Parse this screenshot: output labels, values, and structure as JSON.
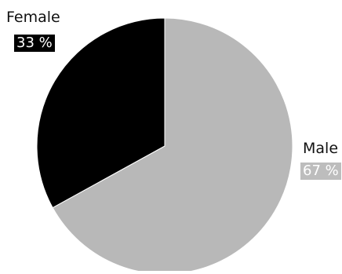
{
  "chart_data": {
    "type": "pie",
    "slices": [
      {
        "label": "Male",
        "value": 67,
        "value_label": "67 %",
        "color": "#b8b8b8"
      },
      {
        "label": "Female",
        "value": 33,
        "value_label": "33 %",
        "color": "#000000"
      }
    ],
    "start": "top, clockwise",
    "legend": "none",
    "title": ""
  }
}
